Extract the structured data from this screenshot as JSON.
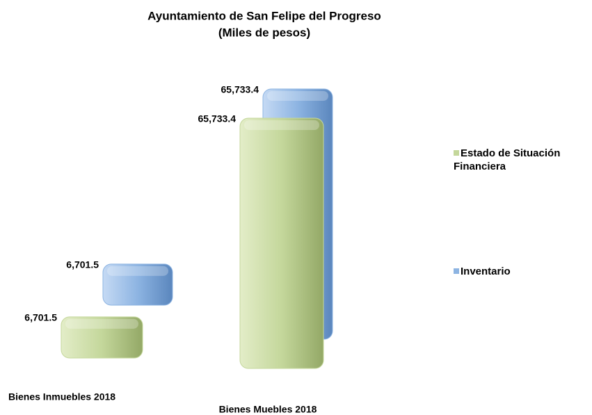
{
  "chart_data": {
    "type": "bar3d",
    "title": "Ayuntamiento de San Felipe del Progreso",
    "subtitle": "(Miles de pesos)",
    "categories": [
      "Bienes Inmuebles 2018",
      "Bienes Muebles 2018"
    ],
    "series": [
      {
        "name": "Estado de Situación Financiera",
        "color": "#c4d79b",
        "values": [
          6701.5,
          65733.4
        ],
        "value_labels": [
          "6,701.5",
          "65,733.4"
        ]
      },
      {
        "name": "Inventario",
        "color": "#8db4e2",
        "values": [
          6701.5,
          65733.4
        ],
        "value_labels": [
          "6,701.5",
          "65,733.4"
        ]
      }
    ],
    "legend": "right"
  }
}
